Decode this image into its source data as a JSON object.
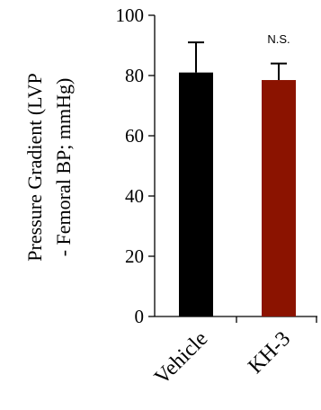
{
  "chart_data": {
    "type": "bar",
    "title": "",
    "ylabel_line1": "Pressure Gradient (LVP",
    "ylabel_line2": "- Femoral BP; mmHg)",
    "xlabel": "",
    "categories": [
      "Vehicle",
      "KH-3"
    ],
    "values": [
      81,
      78.5
    ],
    "errors": [
      10,
      5.5
    ],
    "colors": [
      "#000000",
      "#8B1300"
    ],
    "ylim": [
      0,
      100
    ],
    "yticks": [
      "0",
      "20",
      "40",
      "60",
      "80",
      "100"
    ],
    "annotations": [
      {
        "category": "KH-3",
        "text": "N.S."
      }
    ],
    "grid": false,
    "legend": "none"
  }
}
